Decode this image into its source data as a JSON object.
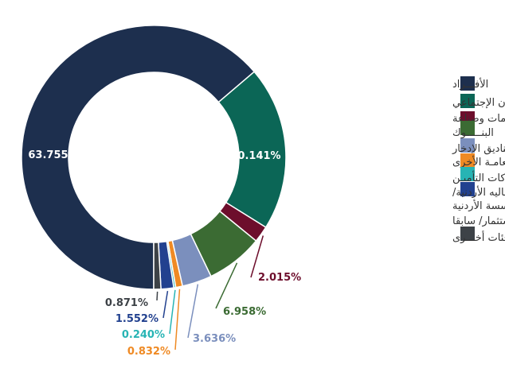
{
  "chart_data": {
    "type": "pie",
    "donut": true,
    "legend_position": "right",
    "series": [
      {
        "name": "الأفـــراد",
        "value": 63.755,
        "label": "63.755%",
        "color": "#1d2f4e"
      },
      {
        "name": "المؤسسة العامة للضمان الإجتماعي",
        "value": 20.141,
        "label": "20.141%",
        "color": "#0b6656"
      },
      {
        "name": "شركات خدمات وصناعة",
        "value": 2.015,
        "label": "2.015%",
        "color": "#6d0e2c"
      },
      {
        "name": "البنـــــوك",
        "value": 6.958,
        "label": "6.958%",
        "color": "#3b6b33"
      },
      {
        "name": "صناديق الإدخار",
        "value": 3.636,
        "label": "3.636%",
        "color": "#7b8fbd"
      },
      {
        "name": "المؤسسات العامـة الأخرى",
        "value": 0.832,
        "label": "0.832%",
        "color": "#ef8a24"
      },
      {
        "name": "شركات التأميـن",
        "value": 0.24,
        "label": "0.240%",
        "color": "#27b4b4"
      },
      {
        "name": "وزارة الماليه الأردنية/ المؤسسة الأردنية للاستثمار/ سابقا",
        "value": 1.552,
        "label": "1.552%",
        "color": "#22418f"
      },
      {
        "name": "فئات أخـــرى",
        "value": 0.871,
        "label": "0.871%",
        "color": "#3d4247"
      }
    ]
  }
}
